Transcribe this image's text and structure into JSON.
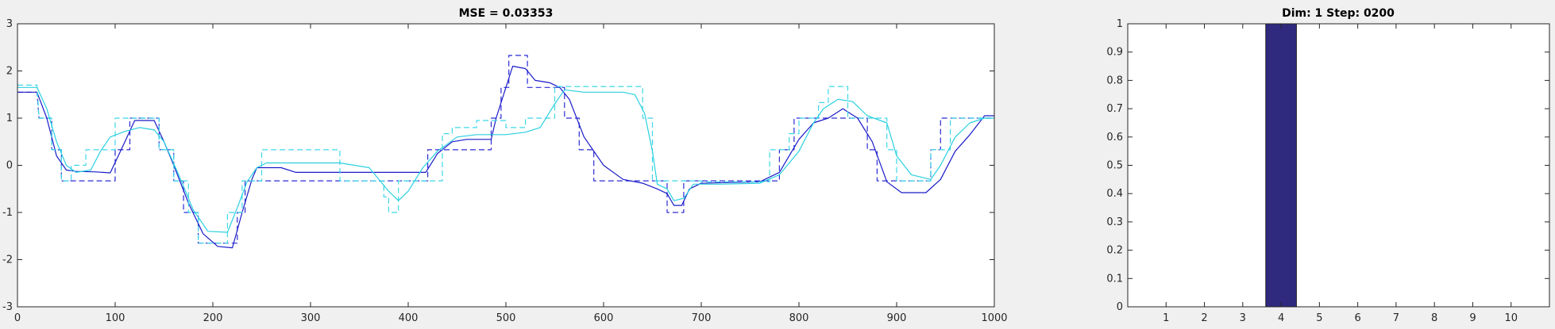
{
  "chart_data": [
    {
      "type": "line",
      "title": "MSE = 0.03353",
      "xlim": [
        0,
        1000
      ],
      "ylim": [
        -3,
        3
      ],
      "xticks": [
        0,
        100,
        200,
        300,
        400,
        500,
        600,
        700,
        800,
        900,
        1000
      ],
      "yticks": [
        -3,
        -2,
        -1,
        0,
        1,
        2,
        3
      ],
      "grid": false,
      "series": [
        {
          "style": "dashed",
          "color": "#2b2bd6",
          "points": [
            [
              0,
              1.55
            ],
            [
              20,
              1.55
            ],
            [
              22,
              1.0
            ],
            [
              35,
              1.0
            ],
            [
              35,
              0.33
            ],
            [
              45,
              0.33
            ],
            [
              45,
              -0.33
            ],
            [
              100,
              -0.33
            ],
            [
              100,
              0.33
            ],
            [
              115,
              0.33
            ],
            [
              115,
              1.0
            ],
            [
              145,
              1.0
            ],
            [
              145,
              0.33
            ],
            [
              160,
              0.33
            ],
            [
              160,
              -0.33
            ],
            [
              170,
              -0.33
            ],
            [
              170,
              -1.0
            ],
            [
              185,
              -1.0
            ],
            [
              185,
              -1.65
            ],
            [
              225,
              -1.65
            ],
            [
              225,
              -1.0
            ],
            [
              233,
              -1.0
            ],
            [
              233,
              -0.33
            ],
            [
              420,
              -0.33
            ],
            [
              420,
              0.33
            ],
            [
              485,
              0.33
            ],
            [
              485,
              1.0
            ],
            [
              495,
              1.0
            ],
            [
              495,
              1.65
            ],
            [
              503,
              1.65
            ],
            [
              503,
              2.33
            ],
            [
              522,
              2.33
            ],
            [
              522,
              1.65
            ],
            [
              560,
              1.65
            ],
            [
              560,
              1.0
            ],
            [
              575,
              1.0
            ],
            [
              575,
              0.33
            ],
            [
              590,
              0.33
            ],
            [
              590,
              -0.33
            ],
            [
              665,
              -0.33
            ],
            [
              665,
              -1.0
            ],
            [
              682,
              -1.0
            ],
            [
              682,
              -0.33
            ],
            [
              780,
              -0.33
            ],
            [
              780,
              0.33
            ],
            [
              795,
              0.33
            ],
            [
              795,
              1.0
            ],
            [
              870,
              1.0
            ],
            [
              870,
              0.33
            ],
            [
              880,
              0.33
            ],
            [
              880,
              -0.33
            ],
            [
              935,
              -0.33
            ],
            [
              935,
              0.33
            ],
            [
              945,
              0.33
            ],
            [
              945,
              1.0
            ],
            [
              1000,
              1.0
            ]
          ]
        },
        {
          "style": "solid",
          "color": "#1a1ac8",
          "points": [
            [
              0,
              1.55
            ],
            [
              20,
              1.55
            ],
            [
              30,
              1.0
            ],
            [
              40,
              0.2
            ],
            [
              50,
              -0.1
            ],
            [
              60,
              -0.13
            ],
            [
              80,
              -0.14
            ],
            [
              95,
              -0.16
            ],
            [
              110,
              0.5
            ],
            [
              120,
              0.95
            ],
            [
              140,
              0.95
            ],
            [
              150,
              0.5
            ],
            [
              160,
              0.0
            ],
            [
              175,
              -0.8
            ],
            [
              190,
              -1.45
            ],
            [
              205,
              -1.72
            ],
            [
              220,
              -1.75
            ],
            [
              230,
              -1.0
            ],
            [
              240,
              -0.3
            ],
            [
              245,
              -0.05
            ],
            [
              270,
              -0.05
            ],
            [
              285,
              -0.15
            ],
            [
              300,
              -0.15
            ],
            [
              350,
              -0.15
            ],
            [
              400,
              -0.15
            ],
            [
              418,
              -0.15
            ],
            [
              430,
              0.25
            ],
            [
              445,
              0.5
            ],
            [
              460,
              0.55
            ],
            [
              485,
              0.55
            ],
            [
              490,
              1.0
            ],
            [
              500,
              1.65
            ],
            [
              507,
              2.1
            ],
            [
              520,
              2.05
            ],
            [
              530,
              1.8
            ],
            [
              545,
              1.75
            ],
            [
              555,
              1.65
            ],
            [
              565,
              1.4
            ],
            [
              580,
              0.6
            ],
            [
              600,
              0.0
            ],
            [
              620,
              -0.3
            ],
            [
              640,
              -0.38
            ],
            [
              655,
              -0.5
            ],
            [
              665,
              -0.6
            ],
            [
              672,
              -0.85
            ],
            [
              680,
              -0.85
            ],
            [
              688,
              -0.5
            ],
            [
              700,
              -0.38
            ],
            [
              760,
              -0.35
            ],
            [
              780,
              -0.15
            ],
            [
              800,
              0.55
            ],
            [
              815,
              0.9
            ],
            [
              830,
              1.0
            ],
            [
              845,
              1.2
            ],
            [
              860,
              1.0
            ],
            [
              875,
              0.5
            ],
            [
              890,
              -0.35
            ],
            [
              905,
              -0.58
            ],
            [
              930,
              -0.58
            ],
            [
              945,
              -0.3
            ],
            [
              960,
              0.3
            ],
            [
              975,
              0.65
            ],
            [
              990,
              1.05
            ],
            [
              1000,
              1.05
            ]
          ]
        },
        {
          "style": "dashed",
          "color": "#3dd8e8",
          "points": [
            [
              0,
              1.7
            ],
            [
              20,
              1.7
            ],
            [
              22,
              1.0
            ],
            [
              35,
              1.0
            ],
            [
              35,
              0.33
            ],
            [
              45,
              0.33
            ],
            [
              45,
              -0.33
            ],
            [
              55,
              -0.33
            ],
            [
              55,
              0.0
            ],
            [
              70,
              0.0
            ],
            [
              70,
              0.33
            ],
            [
              100,
              0.33
            ],
            [
              100,
              1.0
            ],
            [
              145,
              1.0
            ],
            [
              145,
              0.33
            ],
            [
              160,
              0.33
            ],
            [
              160,
              -0.33
            ],
            [
              175,
              -0.33
            ],
            [
              175,
              -1.0
            ],
            [
              185,
              -1.0
            ],
            [
              185,
              -1.65
            ],
            [
              215,
              -1.65
            ],
            [
              215,
              -1.0
            ],
            [
              230,
              -1.0
            ],
            [
              230,
              -0.33
            ],
            [
              250,
              -0.33
            ],
            [
              250,
              0.33
            ],
            [
              330,
              0.33
            ],
            [
              330,
              -0.33
            ],
            [
              375,
              -0.33
            ],
            [
              375,
              -0.67
            ],
            [
              380,
              -0.67
            ],
            [
              380,
              -1.0
            ],
            [
              390,
              -1.0
            ],
            [
              390,
              -0.33
            ],
            [
              435,
              -0.33
            ],
            [
              435,
              0.67
            ],
            [
              445,
              0.67
            ],
            [
              445,
              0.8
            ],
            [
              470,
              0.8
            ],
            [
              470,
              0.95
            ],
            [
              500,
              0.95
            ],
            [
              500,
              0.8
            ],
            [
              520,
              0.8
            ],
            [
              520,
              1.0
            ],
            [
              550,
              1.0
            ],
            [
              550,
              1.67
            ],
            [
              640,
              1.67
            ],
            [
              640,
              1.0
            ],
            [
              650,
              1.0
            ],
            [
              650,
              -0.33
            ],
            [
              700,
              -0.33
            ],
            [
              700,
              -0.35
            ],
            [
              770,
              -0.35
            ],
            [
              770,
              0.33
            ],
            [
              790,
              0.33
            ],
            [
              790,
              0.67
            ],
            [
              800,
              0.67
            ],
            [
              800,
              1.0
            ],
            [
              820,
              1.0
            ],
            [
              820,
              1.33
            ],
            [
              830,
              1.33
            ],
            [
              830,
              1.67
            ],
            [
              850,
              1.67
            ],
            [
              850,
              1.0
            ],
            [
              890,
              1.0
            ],
            [
              890,
              0.33
            ],
            [
              900,
              0.33
            ],
            [
              900,
              -0.33
            ],
            [
              935,
              -0.33
            ],
            [
              935,
              0.33
            ],
            [
              955,
              0.33
            ],
            [
              955,
              1.0
            ],
            [
              1000,
              1.0
            ]
          ]
        },
        {
          "style": "solid",
          "color": "#2ad0e0",
          "points": [
            [
              0,
              1.65
            ],
            [
              20,
              1.65
            ],
            [
              30,
              1.2
            ],
            [
              40,
              0.5
            ],
            [
              50,
              0.0
            ],
            [
              60,
              -0.15
            ],
            [
              75,
              -0.1
            ],
            [
              85,
              0.3
            ],
            [
              95,
              0.6
            ],
            [
              110,
              0.72
            ],
            [
              125,
              0.8
            ],
            [
              140,
              0.75
            ],
            [
              150,
              0.5
            ],
            [
              165,
              -0.2
            ],
            [
              180,
              -0.95
            ],
            [
              195,
              -1.4
            ],
            [
              215,
              -1.42
            ],
            [
              225,
              -0.9
            ],
            [
              235,
              -0.35
            ],
            [
              245,
              -0.05
            ],
            [
              255,
              0.05
            ],
            [
              280,
              0.05
            ],
            [
              300,
              0.05
            ],
            [
              330,
              0.05
            ],
            [
              360,
              -0.05
            ],
            [
              380,
              -0.55
            ],
            [
              390,
              -0.75
            ],
            [
              400,
              -0.55
            ],
            [
              415,
              -0.05
            ],
            [
              430,
              0.3
            ],
            [
              450,
              0.6
            ],
            [
              470,
              0.65
            ],
            [
              500,
              0.65
            ],
            [
              520,
              0.7
            ],
            [
              535,
              0.8
            ],
            [
              550,
              1.3
            ],
            [
              560,
              1.6
            ],
            [
              580,
              1.55
            ],
            [
              620,
              1.55
            ],
            [
              632,
              1.5
            ],
            [
              642,
              1.1
            ],
            [
              650,
              0.3
            ],
            [
              655,
              -0.4
            ],
            [
              665,
              -0.5
            ],
            [
              672,
              -0.75
            ],
            [
              682,
              -0.7
            ],
            [
              692,
              -0.4
            ],
            [
              720,
              -0.4
            ],
            [
              760,
              -0.38
            ],
            [
              780,
              -0.2
            ],
            [
              800,
              0.3
            ],
            [
              815,
              0.9
            ],
            [
              825,
              1.2
            ],
            [
              840,
              1.4
            ],
            [
              855,
              1.35
            ],
            [
              870,
              1.05
            ],
            [
              890,
              0.9
            ],
            [
              900,
              0.2
            ],
            [
              915,
              -0.2
            ],
            [
              935,
              -0.3
            ],
            [
              945,
              0.0
            ],
            [
              960,
              0.6
            ],
            [
              975,
              0.9
            ],
            [
              990,
              1.0
            ],
            [
              1000,
              1.0
            ]
          ]
        }
      ]
    },
    {
      "type": "bar",
      "title": "Dim: 1  Step: 0200",
      "categories": [
        1,
        2,
        3,
        4,
        5,
        6,
        7,
        8,
        9,
        10
      ],
      "values": [
        0,
        0,
        0,
        1,
        0,
        0,
        0,
        0,
        0,
        0
      ],
      "xlim": [
        0,
        11
      ],
      "ylim": [
        0,
        1
      ],
      "yticks": [
        0,
        0.1,
        0.2,
        0.3,
        0.4,
        0.5,
        0.6,
        0.7,
        0.8,
        0.9,
        1
      ],
      "bar_color": "#2f2a7e",
      "grid": false
    }
  ]
}
